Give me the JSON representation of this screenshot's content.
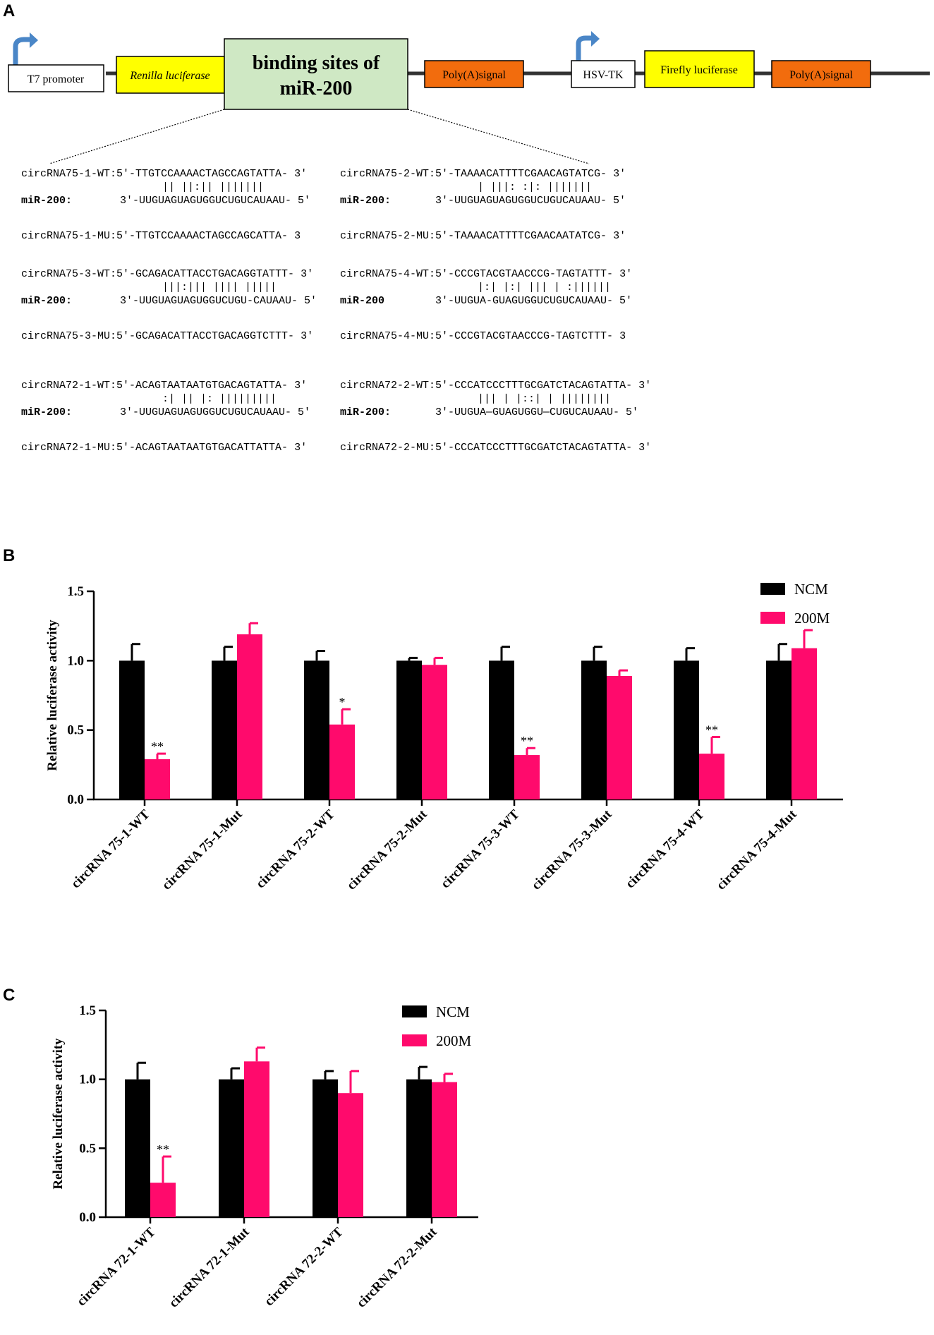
{
  "panelA": {
    "label": "A",
    "construct": {
      "t7": "T7 promoter",
      "renilla": "Renilla luciferase",
      "binding_line1": "binding sites of",
      "binding_line2": "miR-200",
      "polyA1": "Poly(A)signal",
      "hsvtk": "HSV-TK",
      "firefly": "Firefly luciferase",
      "polyA2": "Poly(A)signal"
    },
    "colors": {
      "yellow": "#ffff00",
      "green": "#cfe8c4",
      "orange": "#f26c0d",
      "arrow": "#4a86c7"
    },
    "left_blocks": [
      {
        "wt": "circRNA75-1-WT:5'-TTGTCCAAAACTAGCCAGTATTA- 3'",
        "pair": "||  ||:|| |||||||",
        "mir_label": "miR-200:",
        "mir": "3'-UUGUAGUAGUGGUCUGUCAUAAU- 5'",
        "mu": "circRNA75-1-MU:5'-TTGTCCAAAACTAGCCAGCATTA- 3"
      },
      {
        "wt": "circRNA75-3-WT:5'-GCAGACATTACCTGACAGGTATTT- 3'",
        "pair": "|||:||| |||| |||||",
        "mir_label": "miR-200:",
        "mir": "3'-UUGUAGUAGUGGUCUGU-CAUAAU- 5'",
        "mu": "circRNA75-3-MU:5'-GCAGACATTACCTGACAGGTCTTT- 3'"
      },
      {
        "wt": "circRNA72-1-WT:5'-ACAGTAATAATGTGACAGTATTA- 3'",
        "pair": ":| || |:  |||||||||",
        "mir_label": "miR-200:",
        "mir": "3'-UUGUAGUAGUGGUCUGUCAUAAU- 5'",
        "mu": "circRNA72-1-MU:5'-ACAGTAATAATGTGACATTATTA- 3'"
      }
    ],
    "right_blocks": [
      {
        "wt": "circRNA75-2-WT:5'-TAAAACATTTTCGAACAGTATCG- 3'",
        "pair": "| |||: :|: |||||||",
        "mir_label": "miR-200:",
        "mir": "3'-UUGUAGUAGUGGUCUGUCAUAAU- 5'",
        "mu": "circRNA75-2-MU:5'-TAAAACATTTTCGAACAATATCG- 3'"
      },
      {
        "wt": "circRNA75-4-WT:5'-CCCGTACGTAACCCG-TAGTATTT- 3'",
        "pair": "|:| |:| ||| | :||||||",
        "mir_label": "miR-200",
        "mir": "3'-UUGUA-GUAGUGGUCUGUCAUAAU- 5'",
        "mu": "circRNA75-4-MU:5'-CCCGTACGTAACCCG-TAGTCTTT- 3"
      },
      {
        "wt": "circRNA72-2-WT:5'-CCCATCCCTTTGCGATCTACAGTATTA- 3'",
        "pair": "|||  | |::| |   ||||||||",
        "mir_label": "miR-200:",
        "mir": "3'-UUGUA—GUAGUGGU—CUGUCAUAAU- 5'",
        "mu": "circRNA72-2-MU:5'-CCCATCCCTTTGCGATCTACAGTATTA- 3'"
      }
    ]
  },
  "panelB": {
    "label": "B",
    "chart_data": {
      "type": "bar",
      "categories": [
        "circRNA 75-1-WT",
        "circRNA 75-1-Mut",
        "circRNA 75-2-WT",
        "circRNA 75-2-Mut",
        "circRNA 75-3-WT",
        "circRNA 75-3-Mut",
        "circRNA 75-4-WT",
        "circRNA 75-4-Mut"
      ],
      "series": [
        {
          "name": "NCM",
          "color": "#000000",
          "values": [
            1.0,
            1.0,
            1.0,
            1.0,
            1.0,
            1.0,
            1.0,
            1.0
          ],
          "errors": [
            0.12,
            0.1,
            0.07,
            0.02,
            0.1,
            0.1,
            0.09,
            0.12
          ]
        },
        {
          "name": "200M",
          "color": "#ff0a6c",
          "values": [
            0.29,
            1.19,
            0.54,
            0.97,
            0.32,
            0.89,
            0.33,
            1.09
          ],
          "errors": [
            0.04,
            0.08,
            0.11,
            0.05,
            0.05,
            0.04,
            0.12,
            0.13
          ]
        }
      ],
      "significance": [
        "**",
        "",
        "*",
        "",
        "**",
        "",
        "**",
        ""
      ],
      "ylabel": "Relative luciferase activity",
      "ylim": [
        0,
        1.5
      ],
      "yticks": [
        "0.0",
        "0.5",
        "1.0",
        "1.5"
      ],
      "legend_position": "top-right"
    }
  },
  "panelC": {
    "label": "C",
    "chart_data": {
      "type": "bar",
      "categories": [
        "circRNA 72-1-WT",
        "circRNA 72-1-Mut",
        "circRNA 72-2-WT",
        "circRNA 72-2-Mut"
      ],
      "series": [
        {
          "name": "NCM",
          "color": "#000000",
          "values": [
            1.0,
            1.0,
            1.0,
            1.0
          ],
          "errors": [
            0.12,
            0.08,
            0.06,
            0.09
          ]
        },
        {
          "name": "200M",
          "color": "#ff0a6c",
          "values": [
            0.25,
            1.13,
            0.9,
            0.98
          ],
          "errors": [
            0.19,
            0.1,
            0.16,
            0.06
          ]
        }
      ],
      "significance": [
        "**",
        "",
        "",
        ""
      ],
      "ylabel": "Relative luciferase activity",
      "ylim": [
        0,
        1.5
      ],
      "yticks": [
        "0.0",
        "0.5",
        "1.0",
        "1.5"
      ],
      "legend_position": "top-right"
    }
  }
}
